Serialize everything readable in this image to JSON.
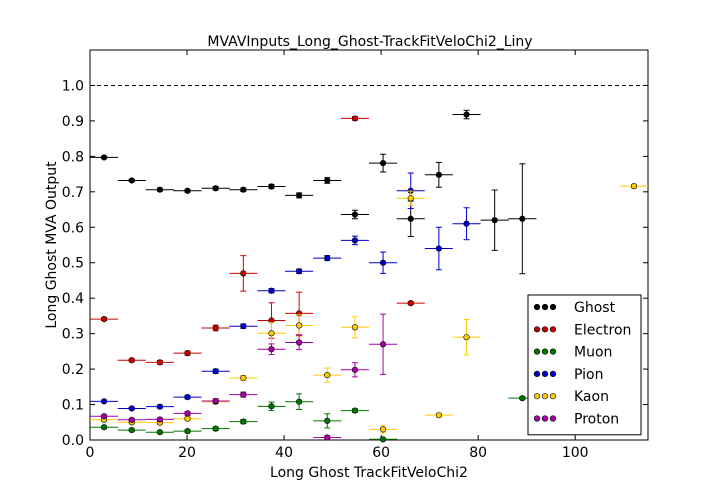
{
  "chart_data": {
    "type": "scatter",
    "title": "MVAVInputs_Long_Ghost-TrackFitVeloChi2_Liny",
    "xlabel": "Long Ghost TrackFitVeloChi2",
    "ylabel": "Long Ghost MVA Output",
    "xlim": [
      0,
      115
    ],
    "ylim": [
      0,
      1.1
    ],
    "xticks": [
      "0",
      "20",
      "40",
      "60",
      "80",
      "100"
    ],
    "yticks": [
      "0.0",
      "0.1",
      "0.2",
      "0.3",
      "0.4",
      "0.5",
      "0.6",
      "0.7",
      "0.8",
      "0.9",
      "1.0"
    ],
    "reference_line": 1.0,
    "legend_position": "lower-right",
    "series": [
      {
        "name": "Ghost",
        "color": "#000000",
        "points": [
          {
            "x": 2.9,
            "xerr": 2.9,
            "y": 0.797,
            "yerr": 0.003
          },
          {
            "x": 8.6,
            "xerr": 2.9,
            "y": 0.732,
            "yerr": 0.003
          },
          {
            "x": 14.4,
            "xerr": 2.9,
            "y": 0.706,
            "yerr": 0.004
          },
          {
            "x": 20.1,
            "xerr": 2.9,
            "y": 0.703,
            "yerr": 0.004
          },
          {
            "x": 25.9,
            "xerr": 2.9,
            "y": 0.71,
            "yerr": 0.005
          },
          {
            "x": 31.6,
            "xerr": 2.9,
            "y": 0.706,
            "yerr": 0.005
          },
          {
            "x": 37.4,
            "xerr": 2.9,
            "y": 0.715,
            "yerr": 0.006
          },
          {
            "x": 43.1,
            "xerr": 2.9,
            "y": 0.69,
            "yerr": 0.007
          },
          {
            "x": 48.9,
            "xerr": 2.9,
            "y": 0.732,
            "yerr": 0.008
          },
          {
            "x": 54.6,
            "xerr": 2.9,
            "y": 0.636,
            "yerr": 0.012
          },
          {
            "x": 60.4,
            "xerr": 2.9,
            "y": 0.781,
            "yerr": 0.025
          },
          {
            "x": 66.1,
            "xerr": 2.9,
            "y": 0.624,
            "yerr": 0.05
          },
          {
            "x": 71.9,
            "xerr": 2.9,
            "y": 0.748,
            "yerr": 0.035
          },
          {
            "x": 77.6,
            "xerr": 2.9,
            "y": 0.918,
            "yerr": 0.012
          },
          {
            "x": 83.4,
            "xerr": 2.9,
            "y": 0.62,
            "yerr": 0.085
          },
          {
            "x": 89.1,
            "xerr": 2.9,
            "y": 0.624,
            "yerr": 0.155
          }
        ]
      },
      {
        "name": "Electron",
        "color": "#cc0000",
        "points": [
          {
            "x": 2.9,
            "xerr": 2.9,
            "y": 0.341,
            "yerr": 0.004
          },
          {
            "x": 8.6,
            "xerr": 2.9,
            "y": 0.225,
            "yerr": 0.004
          },
          {
            "x": 14.4,
            "xerr": 2.9,
            "y": 0.219,
            "yerr": 0.005
          },
          {
            "x": 20.1,
            "xerr": 2.9,
            "y": 0.245,
            "yerr": 0.006
          },
          {
            "x": 25.9,
            "xerr": 2.9,
            "y": 0.316,
            "yerr": 0.008
          },
          {
            "x": 31.6,
            "xerr": 2.9,
            "y": 0.47,
            "yerr": 0.05
          },
          {
            "x": 37.4,
            "xerr": 2.9,
            "y": 0.337,
            "yerr": 0.05
          },
          {
            "x": 43.1,
            "xerr": 2.9,
            "y": 0.357,
            "yerr": 0.06
          },
          {
            "x": 54.6,
            "xerr": 2.9,
            "y": 0.907,
            "yerr": 0.005
          },
          {
            "x": 66.1,
            "xerr": 2.9,
            "y": 0.386,
            "yerr": 0.004
          }
        ]
      },
      {
        "name": "Muon",
        "color": "#007700",
        "points": [
          {
            "x": 2.9,
            "xerr": 2.9,
            "y": 0.036,
            "yerr": 0.003
          },
          {
            "x": 8.6,
            "xerr": 2.9,
            "y": 0.028,
            "yerr": 0.003
          },
          {
            "x": 14.4,
            "xerr": 2.9,
            "y": 0.022,
            "yerr": 0.003
          },
          {
            "x": 20.1,
            "xerr": 2.9,
            "y": 0.025,
            "yerr": 0.004
          },
          {
            "x": 25.9,
            "xerr": 2.9,
            "y": 0.032,
            "yerr": 0.005
          },
          {
            "x": 31.6,
            "xerr": 2.9,
            "y": 0.052,
            "yerr": 0.006
          },
          {
            "x": 37.4,
            "xerr": 2.9,
            "y": 0.095,
            "yerr": 0.012
          },
          {
            "x": 43.1,
            "xerr": 2.9,
            "y": 0.108,
            "yerr": 0.022
          },
          {
            "x": 48.9,
            "xerr": 2.9,
            "y": 0.054,
            "yerr": 0.02
          },
          {
            "x": 54.6,
            "xerr": 2.9,
            "y": 0.083,
            "yerr": 0.005
          },
          {
            "x": 60.4,
            "xerr": 2.9,
            "y": 0.002,
            "yerr": 0.003
          },
          {
            "x": 89.1,
            "xerr": 2.9,
            "y": 0.118,
            "yerr": 0.004
          }
        ]
      },
      {
        "name": "Pion",
        "color": "#0000cc",
        "points": [
          {
            "x": 2.9,
            "xerr": 2.9,
            "y": 0.109,
            "yerr": 0.003
          },
          {
            "x": 8.6,
            "xerr": 2.9,
            "y": 0.089,
            "yerr": 0.003
          },
          {
            "x": 14.4,
            "xerr": 2.9,
            "y": 0.094,
            "yerr": 0.004
          },
          {
            "x": 20.1,
            "xerr": 2.9,
            "y": 0.121,
            "yerr": 0.005
          },
          {
            "x": 25.9,
            "xerr": 2.9,
            "y": 0.194,
            "yerr": 0.006
          },
          {
            "x": 31.6,
            "xerr": 2.9,
            "y": 0.321,
            "yerr": 0.006
          },
          {
            "x": 37.4,
            "xerr": 2.9,
            "y": 0.421,
            "yerr": 0.006
          },
          {
            "x": 43.1,
            "xerr": 2.9,
            "y": 0.476,
            "yerr": 0.006
          },
          {
            "x": 48.9,
            "xerr": 2.9,
            "y": 0.513,
            "yerr": 0.007
          },
          {
            "x": 54.6,
            "xerr": 2.9,
            "y": 0.563,
            "yerr": 0.012
          },
          {
            "x": 60.4,
            "xerr": 2.9,
            "y": 0.5,
            "yerr": 0.03
          },
          {
            "x": 66.1,
            "xerr": 2.9,
            "y": 0.703,
            "yerr": 0.05
          },
          {
            "x": 71.9,
            "xerr": 2.9,
            "y": 0.54,
            "yerr": 0.06
          },
          {
            "x": 77.6,
            "xerr": 2.9,
            "y": 0.61,
            "yerr": 0.045
          }
        ]
      },
      {
        "name": "Kaon",
        "color": "#ffcc00",
        "points": [
          {
            "x": 2.9,
            "xerr": 2.9,
            "y": 0.057,
            "yerr": 0.003
          },
          {
            "x": 8.6,
            "xerr": 2.9,
            "y": 0.05,
            "yerr": 0.003
          },
          {
            "x": 14.4,
            "xerr": 2.9,
            "y": 0.049,
            "yerr": 0.004
          },
          {
            "x": 20.1,
            "xerr": 2.9,
            "y": 0.06,
            "yerr": 0.005
          },
          {
            "x": 25.9,
            "xerr": 2.9,
            "y": 0.108,
            "yerr": 0.006
          },
          {
            "x": 31.6,
            "xerr": 2.9,
            "y": 0.175,
            "yerr": 0.007
          },
          {
            "x": 37.4,
            "xerr": 2.9,
            "y": 0.301,
            "yerr": 0.03
          },
          {
            "x": 43.1,
            "xerr": 2.9,
            "y": 0.323,
            "yerr": 0.03
          },
          {
            "x": 48.9,
            "xerr": 2.9,
            "y": 0.183,
            "yerr": 0.02
          },
          {
            "x": 54.6,
            "xerr": 2.9,
            "y": 0.318,
            "yerr": 0.03
          },
          {
            "x": 60.4,
            "xerr": 2.9,
            "y": 0.03,
            "yerr": 0.01
          },
          {
            "x": 66.1,
            "xerr": 2.9,
            "y": 0.682,
            "yerr": 0.02
          },
          {
            "x": 71.9,
            "xerr": 2.9,
            "y": 0.07,
            "yerr": 0.005
          },
          {
            "x": 77.6,
            "xerr": 2.9,
            "y": 0.29,
            "yerr": 0.05
          },
          {
            "x": 112.1,
            "xerr": 2.9,
            "y": 0.716,
            "yerr": 0.004
          }
        ]
      },
      {
        "name": "Proton",
        "color": "#aa00aa",
        "points": [
          {
            "x": 2.9,
            "xerr": 2.9,
            "y": 0.067,
            "yerr": 0.003
          },
          {
            "x": 8.6,
            "xerr": 2.9,
            "y": 0.057,
            "yerr": 0.003
          },
          {
            "x": 14.4,
            "xerr": 2.9,
            "y": 0.058,
            "yerr": 0.004
          },
          {
            "x": 20.1,
            "xerr": 2.9,
            "y": 0.075,
            "yerr": 0.005
          },
          {
            "x": 25.9,
            "xerr": 2.9,
            "y": 0.11,
            "yerr": 0.006
          },
          {
            "x": 31.6,
            "xerr": 2.9,
            "y": 0.128,
            "yerr": 0.007
          },
          {
            "x": 37.4,
            "xerr": 2.9,
            "y": 0.256,
            "yerr": 0.015
          },
          {
            "x": 43.1,
            "xerr": 2.9,
            "y": 0.275,
            "yerr": 0.02
          },
          {
            "x": 48.9,
            "xerr": 2.9,
            "y": 0.007,
            "yerr": 0.005
          },
          {
            "x": 54.6,
            "xerr": 2.9,
            "y": 0.198,
            "yerr": 0.02
          },
          {
            "x": 60.4,
            "xerr": 2.9,
            "y": 0.27,
            "yerr": 0.085
          }
        ]
      }
    ]
  }
}
